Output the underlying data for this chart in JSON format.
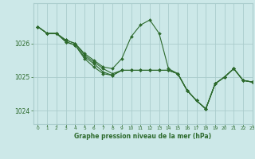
{
  "title": "Graphe pression niveau de la mer (hPa)",
  "bg_color": "#cce8e8",
  "grid_color": "#aacccc",
  "line_color": "#2d6a2d",
  "marker_color": "#2d6a2d",
  "xlim": [
    -0.5,
    23
  ],
  "ylim": [
    1023.6,
    1027.2
  ],
  "yticks": [
    1024,
    1025,
    1026
  ],
  "xticks": [
    0,
    1,
    2,
    3,
    4,
    5,
    6,
    7,
    8,
    9,
    10,
    11,
    12,
    13,
    14,
    15,
    16,
    17,
    18,
    19,
    20,
    21,
    22,
    23
  ],
  "series": [
    {
      "x": [
        0,
        1,
        2,
        3,
        4,
        5,
        6,
        7,
        8,
        9,
        10,
        11,
        12,
        13,
        14,
        15,
        16,
        17,
        18,
        19,
        20,
        21,
        22,
        23
      ],
      "y": [
        1026.5,
        1026.3,
        1026.3,
        1026.1,
        1026.0,
        1025.7,
        1025.5,
        1025.3,
        1025.25,
        1025.55,
        1026.2,
        1026.55,
        1026.7,
        1026.3,
        1025.25,
        1025.1,
        1024.6,
        1024.3,
        1024.05,
        1024.8,
        1025.0,
        1025.25,
        1024.9,
        1024.85
      ]
    },
    {
      "x": [
        0,
        1,
        2,
        3,
        4,
        5,
        6,
        7,
        8,
        9,
        10,
        11,
        12,
        13,
        14,
        15,
        16,
        17,
        18,
        19,
        20,
        21,
        22,
        23
      ],
      "y": [
        1026.5,
        1026.3,
        1026.3,
        1026.1,
        1026.0,
        1025.65,
        1025.45,
        1025.25,
        1025.1,
        1025.2,
        1025.2,
        1025.2,
        1025.2,
        1025.2,
        1025.2,
        1025.1,
        1024.6,
        1024.3,
        1024.05,
        1024.8,
        1025.0,
        1025.25,
        1024.9,
        1024.85
      ]
    },
    {
      "x": [
        0,
        1,
        2,
        3,
        4,
        5,
        6,
        7,
        8,
        9,
        10,
        11,
        12,
        13,
        14,
        15,
        16,
        17,
        18,
        19,
        20,
        21,
        22,
        23
      ],
      "y": [
        1026.5,
        1026.3,
        1026.3,
        1026.05,
        1025.95,
        1025.6,
        1025.4,
        1025.15,
        1025.05,
        1025.2,
        1025.2,
        1025.2,
        1025.2,
        1025.2,
        1025.2,
        1025.1,
        1024.6,
        1024.3,
        1024.05,
        1024.8,
        1025.0,
        1025.25,
        1024.9,
        1024.85
      ]
    },
    {
      "x": [
        0,
        1,
        2,
        3,
        4,
        5,
        6,
        7,
        8,
        9,
        10,
        11,
        12,
        13,
        14,
        15,
        16,
        17,
        18,
        19,
        20,
        21,
        22,
        23
      ],
      "y": [
        1026.5,
        1026.3,
        1026.3,
        1026.05,
        1025.95,
        1025.55,
        1025.3,
        1025.1,
        1025.05,
        1025.2,
        1025.2,
        1025.2,
        1025.2,
        1025.2,
        1025.2,
        1025.1,
        1024.6,
        1024.3,
        1024.05,
        1024.8,
        1025.0,
        1025.25,
        1024.9,
        1024.85
      ]
    }
  ]
}
